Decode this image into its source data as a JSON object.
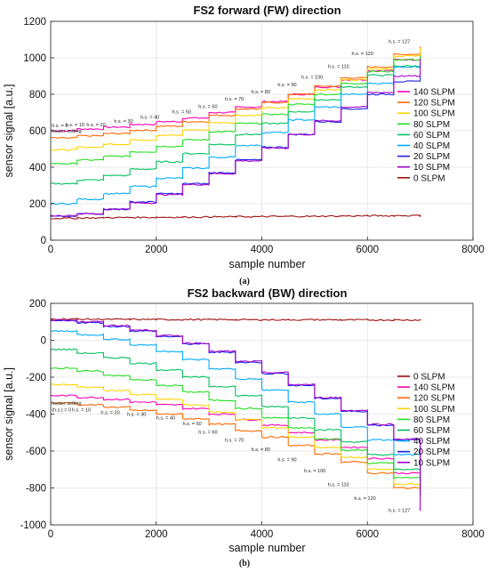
{
  "chart_data": [
    {
      "type": "line",
      "panel_label": "(a)",
      "title": "FS2 forward (FW) direction",
      "xlabel": "sample number",
      "ylabel": "sensor signal [a.u.]",
      "xlim": [
        0,
        8000
      ],
      "ylim": [
        0,
        1200
      ],
      "xticks": [
        0,
        2000,
        4000,
        6000,
        8000
      ],
      "yticks": [
        0,
        200,
        400,
        600,
        800,
        1000,
        1200
      ],
      "grid": true,
      "legend_position": "right",
      "x_step_edges": [
        0,
        500,
        1000,
        1500,
        2000,
        2500,
        3000,
        3500,
        4000,
        4500,
        5000,
        5500,
        6000,
        6500,
        7000
      ],
      "annotations": [
        {
          "text": "heater setting",
          "x": 20,
          "y": 590
        },
        {
          "text": "h.s. = 0",
          "x": 20,
          "y": 620
        },
        {
          "text": "h.s. = 10",
          "x": 280,
          "y": 625
        },
        {
          "text": "h.s. = 20",
          "x": 680,
          "y": 625
        },
        {
          "text": "h.s. = 30",
          "x": 1200,
          "y": 645
        },
        {
          "text": "h.s. = 40",
          "x": 1700,
          "y": 665
        },
        {
          "text": "h.s. = 50",
          "x": 2300,
          "y": 695
        },
        {
          "text": "h.s. = 60",
          "x": 2800,
          "y": 725
        },
        {
          "text": "h.s. = 70",
          "x": 3300,
          "y": 765
        },
        {
          "text": "h.s. = 80",
          "x": 3800,
          "y": 805
        },
        {
          "text": "h.s. = 90",
          "x": 4300,
          "y": 845
        },
        {
          "text": "h.s. = 100",
          "x": 4750,
          "y": 885
        },
        {
          "text": "h.s. = 110",
          "x": 5250,
          "y": 945
        },
        {
          "text": "h.s. = 120",
          "x": 5700,
          "y": 1015
        },
        {
          "text": "h.s. = 127",
          "x": 6400,
          "y": 1080
        }
      ],
      "series": [
        {
          "name": "140 SLPM",
          "color": "#ff00b4",
          "values": [
            600,
            610,
            620,
            635,
            650,
            670,
            700,
            730,
            760,
            800,
            840,
            880,
            930,
            990,
            1030
          ]
        },
        {
          "name": "120 SLPM",
          "color": "#ff6a00",
          "values": [
            560,
            572,
            585,
            603,
            625,
            650,
            685,
            720,
            755,
            800,
            845,
            890,
            950,
            1020,
            1060
          ]
        },
        {
          "name": "100 SLPM",
          "color": "#ffd400",
          "values": [
            495,
            510,
            527,
            550,
            575,
            605,
            645,
            685,
            725,
            775,
            825,
            880,
            940,
            1010,
            1050
          ]
        },
        {
          "name": "80 SLPM",
          "color": "#22dd22",
          "values": [
            420,
            440,
            460,
            485,
            515,
            550,
            595,
            640,
            690,
            745,
            800,
            860,
            925,
            990,
            1010
          ]
        },
        {
          "name": "60 SLPM",
          "color": "#00c060",
          "values": [
            310,
            330,
            355,
            390,
            430,
            475,
            525,
            580,
            640,
            705,
            770,
            840,
            905,
            955,
            960
          ]
        },
        {
          "name": "40 SLPM",
          "color": "#00aaff",
          "values": [
            200,
            225,
            255,
            295,
            340,
            395,
            455,
            520,
            590,
            660,
            730,
            800,
            860,
            950,
            970
          ]
        },
        {
          "name": "20 SLPM",
          "color": "#1e1ee6",
          "values": [
            130,
            145,
            170,
            210,
            255,
            310,
            370,
            440,
            510,
            580,
            650,
            720,
            800,
            870,
            895
          ]
        },
        {
          "name": "10 SLPM",
          "color": "#a000c8",
          "values": [
            135,
            145,
            170,
            205,
            250,
            305,
            365,
            435,
            505,
            580,
            655,
            730,
            810,
            900,
            990
          ]
        },
        {
          "name": "0 SLPM",
          "color": "#a01010",
          "values": [
            120,
            122,
            124,
            125,
            126,
            127,
            128,
            129,
            130,
            131,
            132,
            133,
            134,
            135,
            138
          ]
        }
      ]
    },
    {
      "type": "line",
      "panel_label": "(b)",
      "title": "FS2 backward (BW) direction",
      "xlabel": "sample number",
      "ylabel": "sensor signal [a.u.]",
      "xlim": [
        0,
        8000
      ],
      "ylim": [
        -1000,
        200
      ],
      "xticks": [
        0,
        2000,
        4000,
        6000,
        8000
      ],
      "yticks": [
        -1000,
        -800,
        -600,
        -400,
        -200,
        0,
        200
      ],
      "grid": true,
      "legend_position": "right",
      "x_step_edges": [
        0,
        500,
        1000,
        1500,
        2000,
        2500,
        3000,
        3500,
        4000,
        4500,
        5000,
        5500,
        6000,
        6500,
        7000
      ],
      "annotations": [
        {
          "text": "heater setting",
          "x": 20,
          "y": -350
        },
        {
          "text": "(h.s.) = 0",
          "x": 20,
          "y": -385
        },
        {
          "text": "h.s. = 10",
          "x": 400,
          "y": -385
        },
        {
          "text": "h.s. = 20",
          "x": 950,
          "y": -400
        },
        {
          "text": "h.s. = 30",
          "x": 1450,
          "y": -410
        },
        {
          "text": "h.s. = 40",
          "x": 2000,
          "y": -430
        },
        {
          "text": "h.s. = 50",
          "x": 2500,
          "y": -460
        },
        {
          "text": "h.s. = 60",
          "x": 2800,
          "y": -505
        },
        {
          "text": "h.s. = 70",
          "x": 3300,
          "y": -550
        },
        {
          "text": "h.s. = 80",
          "x": 3800,
          "y": -600
        },
        {
          "text": "h.s. = 90",
          "x": 4300,
          "y": -655
        },
        {
          "text": "h.s. = 100",
          "x": 4800,
          "y": -715
        },
        {
          "text": "h.s. = 110",
          "x": 5250,
          "y": -790
        },
        {
          "text": "h.s. = 120",
          "x": 5750,
          "y": -865
        },
        {
          "text": "h.s. = 127",
          "x": 6400,
          "y": -930
        }
      ],
      "series": [
        {
          "name": "0 SLPM",
          "color": "#a01010",
          "values": [
            115,
            114,
            113,
            113,
            112,
            112,
            112,
            111,
            111,
            111,
            111,
            110,
            110,
            110,
            110
          ]
        },
        {
          "name": "140 SLPM",
          "color": "#ff00b4",
          "values": [
            -300,
            -310,
            -320,
            -335,
            -350,
            -370,
            -400,
            -430,
            -460,
            -500,
            -540,
            -580,
            -640,
            -720,
            -840
          ]
        },
        {
          "name": "120 SLPM",
          "color": "#ff6a00",
          "values": [
            -340,
            -350,
            -362,
            -380,
            -400,
            -425,
            -455,
            -490,
            -525,
            -570,
            -615,
            -660,
            -720,
            -800,
            -850
          ]
        },
        {
          "name": "100 SLPM",
          "color": "#ffd400",
          "values": [
            -240,
            -255,
            -272,
            -295,
            -320,
            -350,
            -390,
            -430,
            -475,
            -525,
            -580,
            -635,
            -700,
            -780,
            -830
          ]
        },
        {
          "name": "80 SLPM",
          "color": "#22dd22",
          "values": [
            -150,
            -168,
            -190,
            -215,
            -245,
            -280,
            -325,
            -370,
            -420,
            -475,
            -535,
            -595,
            -665,
            -745,
            -820
          ]
        },
        {
          "name": "60 SLPM",
          "color": "#00c060",
          "values": [
            -50,
            -70,
            -95,
            -125,
            -160,
            -200,
            -250,
            -300,
            -360,
            -420,
            -485,
            -550,
            -620,
            -700,
            -800
          ]
        },
        {
          "name": "40 SLPM",
          "color": "#00aaff",
          "values": [
            50,
            30,
            5,
            -25,
            -60,
            -105,
            -155,
            -210,
            -270,
            -335,
            -400,
            -470,
            -540,
            -620,
            -830
          ]
        },
        {
          "name": "20 SLPM",
          "color": "#1e1ee6",
          "values": [
            105,
            95,
            75,
            50,
            20,
            -20,
            -65,
            -120,
            -180,
            -245,
            -315,
            -385,
            -460,
            -540,
            -820
          ]
        },
        {
          "name": "10 SLPM",
          "color": "#a000c8",
          "values": [
            110,
            100,
            80,
            55,
            25,
            -15,
            -60,
            -115,
            -175,
            -240,
            -310,
            -380,
            -455,
            -535,
            -920
          ]
        }
      ]
    }
  ]
}
